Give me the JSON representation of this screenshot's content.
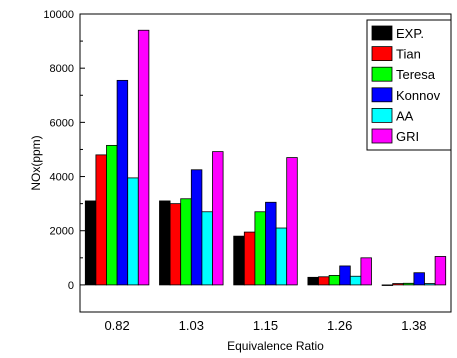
{
  "chart_data": {
    "type": "bar",
    "xlabel": "Equivalence Ratio",
    "ylabel": "NOx(ppm)",
    "categories": [
      "0.82",
      "1.03",
      "1.15",
      "1.26",
      "1.38"
    ],
    "ylim": [
      -1000,
      10000
    ],
    "yticks": [
      0,
      2000,
      4000,
      6000,
      8000,
      10000
    ],
    "grid": false,
    "legend_position": "top-right",
    "series": [
      {
        "name": "EXP.",
        "color": "#000000",
        "values": [
          3100,
          3100,
          1800,
          280,
          0
        ]
      },
      {
        "name": "Tian",
        "color": "#ff0000",
        "values": [
          4800,
          3000,
          1950,
          300,
          50
        ]
      },
      {
        "name": "Teresa",
        "color": "#00ff00",
        "values": [
          5150,
          3180,
          2700,
          350,
          60
        ]
      },
      {
        "name": "Konnov",
        "color": "#0000ff",
        "values": [
          7550,
          4250,
          3050,
          700,
          450
        ]
      },
      {
        "name": "AA",
        "color": "#00ffff",
        "values": [
          3950,
          2700,
          2100,
          320,
          50
        ]
      },
      {
        "name": "GRI",
        "color": "#ff00ff",
        "values": [
          9400,
          4920,
          4700,
          1000,
          1050
        ]
      }
    ]
  }
}
